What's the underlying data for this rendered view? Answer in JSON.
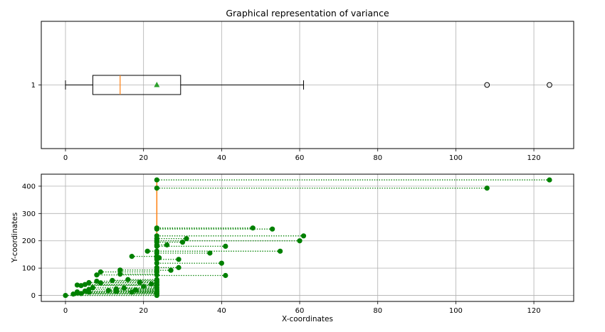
{
  "chart_data": [
    {
      "type": "box",
      "title": "Graphical representation of variance",
      "orientation": "horizontal",
      "category_labels": [
        "1"
      ],
      "xlim": [
        -6.2,
        130.2
      ],
      "x_ticks": [
        0,
        20,
        40,
        60,
        80,
        100,
        120
      ],
      "grid": true,
      "box": {
        "whisker_low": 0,
        "q1": 7,
        "median": 14,
        "q3": 29.5,
        "whisker_high": 61,
        "mean": 23.4,
        "outliers": [
          108,
          124
        ]
      },
      "colors": {
        "median": "#ff7f0e",
        "mean": "#2ca02c",
        "box": "#000000",
        "grid": "#b0b0b0"
      }
    },
    {
      "type": "scatter",
      "xlabel": "X-coordinates",
      "ylabel": "Y-coordinates",
      "xlim": [
        -6.2,
        130.2
      ],
      "ylim": [
        -22,
        444
      ],
      "x_ticks": [
        0,
        20,
        40,
        60,
        80,
        100,
        120
      ],
      "y_ticks": [
        0,
        100,
        200,
        300,
        400
      ],
      "grid": true,
      "mean_line_x": 23.4,
      "points": [
        {
          "x": 0,
          "y": 0
        },
        {
          "x": 2,
          "y": 5
        },
        {
          "x": 3,
          "y": 9
        },
        {
          "x": 3,
          "y": 13
        },
        {
          "x": 4,
          "y": 7
        },
        {
          "x": 5,
          "y": 16
        },
        {
          "x": 6,
          "y": 12
        },
        {
          "x": 6,
          "y": 22
        },
        {
          "x": 7,
          "y": 28
        },
        {
          "x": 3,
          "y": 38
        },
        {
          "x": 4,
          "y": 36
        },
        {
          "x": 5,
          "y": 40
        },
        {
          "x": 6,
          "y": 47
        },
        {
          "x": 8,
          "y": 52
        },
        {
          "x": 9,
          "y": 46
        },
        {
          "x": 8,
          "y": 75
        },
        {
          "x": 9,
          "y": 86
        },
        {
          "x": 11,
          "y": 18
        },
        {
          "x": 12,
          "y": 55
        },
        {
          "x": 13,
          "y": 24
        },
        {
          "x": 13,
          "y": 15
        },
        {
          "x": 14,
          "y": 78
        },
        {
          "x": 14,
          "y": 93
        },
        {
          "x": 15,
          "y": 27
        },
        {
          "x": 16,
          "y": 58
        },
        {
          "x": 17,
          "y": 143
        },
        {
          "x": 17,
          "y": 12
        },
        {
          "x": 18,
          "y": 20
        },
        {
          "x": 19,
          "y": 48
        },
        {
          "x": 20,
          "y": 33
        },
        {
          "x": 21,
          "y": 162
        },
        {
          "x": 22,
          "y": 42
        },
        {
          "x": 24,
          "y": 138
        },
        {
          "x": 26,
          "y": 185
        },
        {
          "x": 27,
          "y": 92
        },
        {
          "x": 29,
          "y": 102
        },
        {
          "x": 29,
          "y": 132
        },
        {
          "x": 30,
          "y": 195
        },
        {
          "x": 31,
          "y": 208
        },
        {
          "x": 37,
          "y": 155
        },
        {
          "x": 40,
          "y": 118
        },
        {
          "x": 41,
          "y": 180
        },
        {
          "x": 41,
          "y": 73
        },
        {
          "x": 48,
          "y": 247
        },
        {
          "x": 53,
          "y": 243
        },
        {
          "x": 55,
          "y": 162
        },
        {
          "x": 60,
          "y": 200
        },
        {
          "x": 61,
          "y": 218
        },
        {
          "x": 108,
          "y": 393
        },
        {
          "x": 124,
          "y": 423
        }
      ],
      "mean_points_y": [
        0,
        5,
        9,
        13,
        16,
        22,
        28,
        36,
        40,
        47,
        52,
        58,
        75,
        86,
        93,
        102,
        118,
        132,
        138,
        143,
        155,
        162,
        180,
        185,
        195,
        200,
        208,
        218,
        243,
        247,
        393,
        423
      ],
      "colors": {
        "points": "#008000",
        "mean_line": "#ff7f0e",
        "grid": "#b0b0b0"
      }
    }
  ]
}
